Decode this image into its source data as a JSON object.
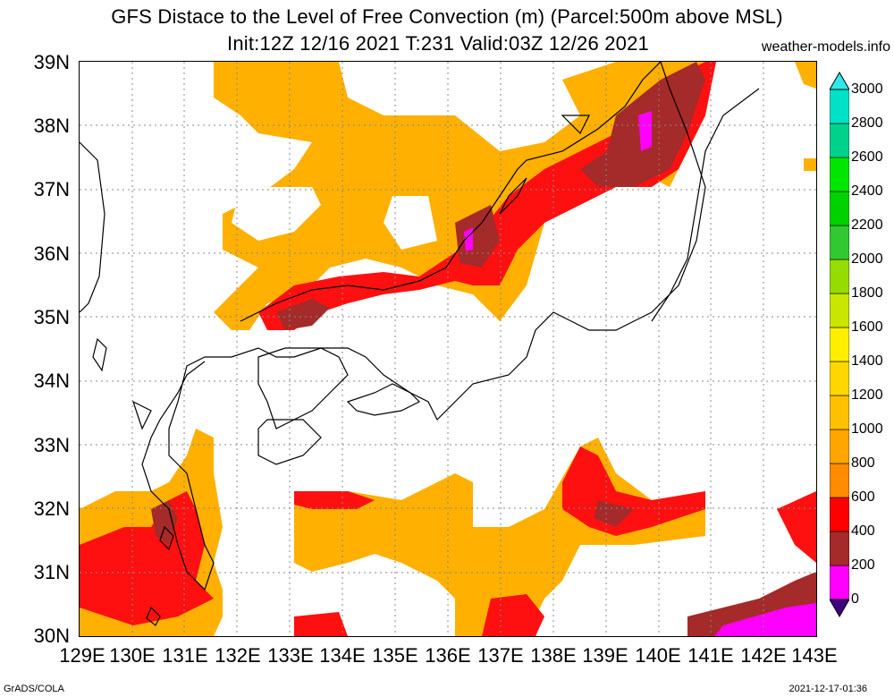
{
  "title_line1": "GFS Distace to the Level of Free Convection (m) (Parcel:500m above MSL)",
  "title_line2": "Init:12Z 12/16 2021 T:231 Valid:03Z 12/26 2021",
  "site": "weather-models.info",
  "footer_left": "GrADS/COLA",
  "footer_right": "2021-12-17-01:36",
  "map": {
    "lon_range": [
      129,
      143
    ],
    "lat_range": [
      30,
      39
    ],
    "grid": "dotted",
    "lat_labels": [
      "39N",
      "38N",
      "37N",
      "36N",
      "35N",
      "34N",
      "33N",
      "32N",
      "31N",
      "30N"
    ],
    "lon_labels": [
      "129E",
      "130E",
      "131E",
      "132E",
      "133E",
      "134E",
      "135E",
      "136E",
      "137E",
      "138E",
      "139E",
      "140E",
      "141E",
      "142E",
      "143E"
    ]
  },
  "colorbar": {
    "levels": [
      "0",
      "200",
      "400",
      "600",
      "800",
      "1000",
      "1200",
      "1400",
      "1600",
      "1800",
      "2000",
      "2200",
      "2400",
      "2600",
      "2800",
      "3000"
    ],
    "colors": [
      "#ff00ff",
      "#a52a2a",
      "#ff0000",
      "#ff8c00",
      "#ffa500",
      "#ffc000",
      "#ffd700",
      "#ffee00",
      "#c8e600",
      "#96dc00",
      "#32c832",
      "#00d200",
      "#00e600",
      "#00d28c",
      "#00e1c8"
    ],
    "low_color": "#400080",
    "high_color": "#30e8e8"
  }
}
